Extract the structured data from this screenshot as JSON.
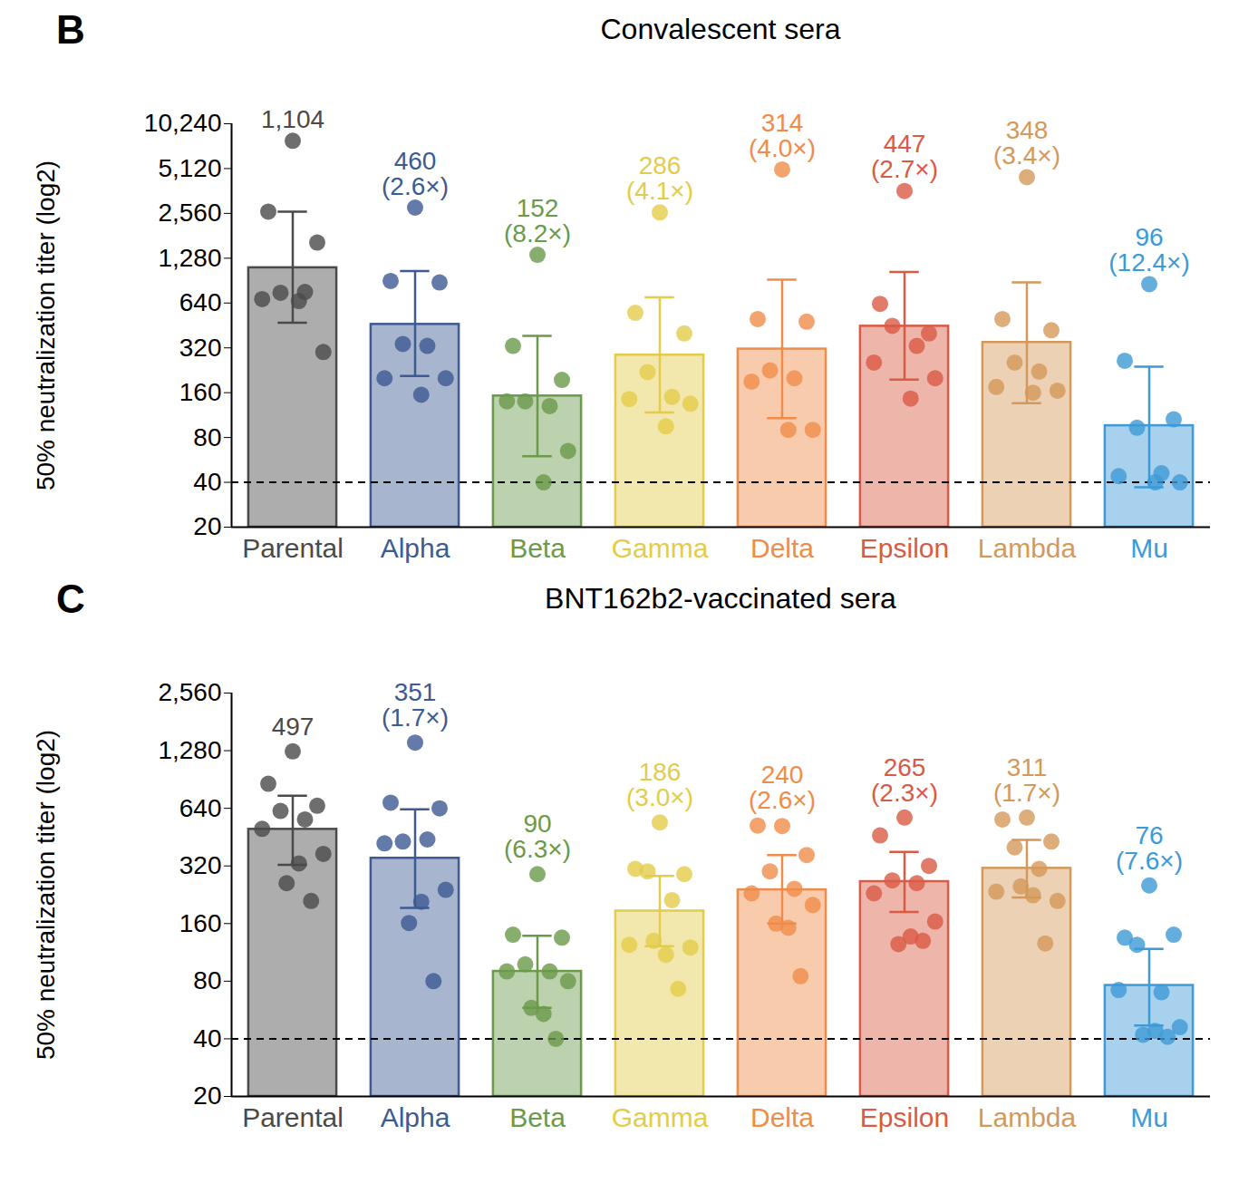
{
  "chart_data": [
    {
      "type": "bar",
      "panel": "B",
      "title": "Convalescent sera",
      "y_label": "50% neutralization titer (log2)",
      "log": "y",
      "data_labels": true,
      "categories": [
        "Parental",
        "Alpha",
        "Beta",
        "Gamma",
        "Delta",
        "Epsilon",
        "Lambda",
        "Mu"
      ],
      "colors": [
        "#4a4a4a",
        "#3d5a93",
        "#6a9a4a",
        "#e3cc4a",
        "#f08c4a",
        "#d95a45",
        "#d4995a",
        "#3d9ad6"
      ],
      "values": [
        1104,
        460,
        152,
        286,
        314,
        447,
        348,
        96
      ],
      "value_labels": [
        "1,104",
        "460",
        "152",
        "286",
        "314",
        "447",
        "348",
        "96"
      ],
      "fold_labels": [
        null,
        "(2.6×)",
        "(8.2×)",
        "(4.1×)",
        "(4.0×)",
        "(2.7×)",
        "(3.4×)",
        "(12.4×)"
      ],
      "error_low": [
        472,
        207,
        60,
        118,
        108,
        196,
        136,
        37
      ],
      "error_high": [
        2630,
        1050,
        385,
        700,
        918,
        1035,
        881,
        239
      ],
      "points": [
        [
          7870,
          2630,
          1630,
          750,
          760,
          680,
          300,
          660
        ],
        [
          2800,
          900,
          880,
          340,
          330,
          200,
          200,
          155
        ],
        [
          1350,
          330,
          195,
          140,
          130,
          140,
          65,
          40
        ],
        [
          2600,
          550,
          400,
          220,
          150,
          145,
          135,
          95
        ],
        [
          5050,
          500,
          480,
          226,
          200,
          190,
          90,
          90
        ],
        [
          3620,
          632,
          400,
          450,
          330,
          255,
          200,
          146
        ],
        [
          4480,
          500,
          420,
          255,
          222,
          175,
          165,
          160
        ],
        [
          857,
          262,
          106,
          93,
          46,
          44,
          40,
          40
        ]
      ],
      "reference_line": {
        "value": 40,
        "line_style": "dashed"
      },
      "ylim": [
        20,
        10240
      ],
      "yticks": [
        20,
        40,
        80,
        160,
        320,
        640,
        {
          "value": 1280,
          "label": "1,280"
        },
        {
          "value": 2560,
          "label": "2,560"
        },
        {
          "value": 5120,
          "label": "5,120"
        },
        {
          "value": 10240,
          "label": "10,240"
        }
      ]
    },
    {
      "type": "bar",
      "panel": "C",
      "title": "BNT162b2-vaccinated sera",
      "y_label": "50% neutralization titer (log2)",
      "log": "y",
      "data_labels": true,
      "categories": [
        "Parental",
        "Alpha",
        "Beta",
        "Gamma",
        "Delta",
        "Epsilon",
        "Lambda",
        "Mu"
      ],
      "colors": [
        "#4a4a4a",
        "#3d5a93",
        "#6a9a4a",
        "#e3cc4a",
        "#f08c4a",
        "#d95a45",
        "#d4995a",
        "#3d9ad6"
      ],
      "values": [
        497,
        351,
        90,
        186,
        240,
        265,
        311,
        76
      ],
      "value_labels": [
        "497",
        "351",
        "90",
        "186",
        "240",
        "265",
        "311",
        "76"
      ],
      "fold_labels": [
        null,
        "(1.7×)",
        "(6.3×)",
        "(3.0×)",
        "(2.6×)",
        "(2.3×)",
        "(1.7×)",
        "(7.6×)"
      ],
      "error_low": [
        324,
        193,
        58,
        122,
        160,
        184,
        219,
        47
      ],
      "error_high": [
        745,
        632,
        138,
        284,
        365,
        379,
        438,
        118
      ],
      "points": [
        [
          1270,
          860,
          660,
          620,
          560,
          500,
          370,
          330,
          260,
          210
        ],
        [
          1410,
          685,
          640,
          429,
          440,
          420,
          240,
          208,
          161,
          80
        ],
        [
          290,
          140,
          135,
          98,
          90,
          90,
          80,
          54,
          58,
          40
        ],
        [
          540,
          309,
          290,
          300,
          212,
          124,
          120,
          110,
          130,
          73
        ],
        [
          517,
          520,
          365,
          300,
          243,
          230,
          200,
          152,
          160,
          85
        ],
        [
          573,
          462,
          320,
          269,
          260,
          230,
          164,
          137,
          125,
          130
        ],
        [
          573,
          560,
          429,
          400,
          309,
          235,
          210,
          225,
          250,
          126
        ],
        [
          253,
          135,
          140,
          124,
          70,
          72,
          46,
          44,
          42,
          41
        ]
      ],
      "reference_line": {
        "value": 40,
        "line_style": "dashed"
      },
      "ylim": [
        20,
        2560
      ],
      "yticks": [
        20,
        40,
        80,
        160,
        320,
        640,
        {
          "value": 1280,
          "label": "1,280"
        },
        {
          "value": 2560,
          "label": "2,560"
        }
      ]
    }
  ]
}
